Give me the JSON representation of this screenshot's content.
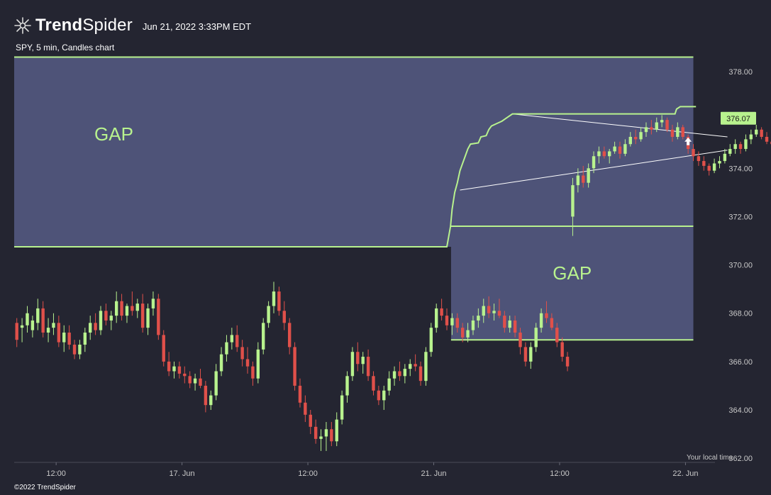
{
  "header": {
    "brand_bold": "Trend",
    "brand_light": "Spider",
    "date": "Jun 21, 2022 3:33PM EDT",
    "logo_icon": "trendspider-logo-icon"
  },
  "subtitle": "SPY, 5 min, Candles chart",
  "footer": {
    "copyright": "©2022 TrendSpider",
    "local_time": "Your local time"
  },
  "colors": {
    "background": "#242531",
    "up": "#b8f28e",
    "down": "#e0504a",
    "gap_fill": "#4e5378",
    "gap_line": "#b8f28e",
    "trendline": "#ffffff"
  },
  "chart_data": {
    "type": "candlestick",
    "ticker": "SPY",
    "interval": "5 min",
    "y_ticks": [
      "378.00",
      "376.00",
      "374.00",
      "372.00",
      "370.00",
      "368.00",
      "366.00",
      "364.00",
      "362.00"
    ],
    "ylim": [
      361.5,
      379.0
    ],
    "x_ticks": [
      "12:00",
      "17. Jun",
      "12:00",
      "21. Jun",
      "12:00",
      "22. Jun"
    ],
    "x_tick_positions": [
      8,
      32,
      56,
      80,
      104,
      128
    ],
    "x_range": [
      0,
      132
    ],
    "last_price": "376.07",
    "gaps": [
      {
        "label": "GAP",
        "x0": 0,
        "x1": 129.5,
        "y_low": 370.75,
        "y_high": 378.6,
        "boundary_x": 83
      },
      {
        "label": "GAP",
        "x0": 83.3,
        "x1": 129.5,
        "y_low": 366.9,
        "y_high": 371.6
      }
    ],
    "trendlines": [
      {
        "x0": 95,
        "y0": 376.25,
        "x1": 136,
        "y1": 375.3
      },
      {
        "x0": 85,
        "y0": 373.1,
        "x1": 136,
        "y1": 374.75
      }
    ],
    "step_line": [
      [
        0,
        370.75
      ],
      [
        82.5,
        370.75
      ],
      [
        83.2,
        371.6
      ],
      [
        83.5,
        372.3
      ],
      [
        84,
        373.0
      ],
      [
        84.5,
        373.4
      ],
      [
        85,
        373.9
      ],
      [
        85.5,
        374.2
      ],
      [
        86,
        374.5
      ],
      [
        86.5,
        374.8
      ],
      [
        87,
        375.0
      ],
      [
        88.5,
        375.05
      ],
      [
        89,
        375.3
      ],
      [
        90,
        375.35
      ],
      [
        90.5,
        375.6
      ],
      [
        91,
        375.75
      ],
      [
        92,
        375.85
      ],
      [
        93,
        375.95
      ],
      [
        94,
        376.1
      ],
      [
        95,
        376.25
      ],
      [
        126,
        376.25
      ],
      [
        126.3,
        376.45
      ],
      [
        127,
        376.55
      ],
      [
        130,
        376.55
      ]
    ],
    "markers": [
      {
        "type": "arrow-up",
        "x": 128.5,
        "y": 375.1
      }
    ],
    "candles": [
      [
        367.6,
        367.8,
        366.6,
        366.9
      ],
      [
        367.4,
        367.8,
        366.8,
        367.5
      ],
      [
        367.5,
        368.3,
        367.2,
        368.0
      ],
      [
        367.3,
        367.9,
        367.0,
        367.7
      ],
      [
        367.6,
        368.6,
        367.3,
        368.2
      ],
      [
        368.2,
        368.5,
        367.0,
        367.2
      ],
      [
        367.2,
        367.8,
        366.8,
        367.4
      ],
      [
        367.4,
        368.0,
        367.1,
        367.6
      ],
      [
        367.6,
        367.9,
        366.6,
        366.8
      ],
      [
        366.8,
        367.5,
        366.4,
        367.2
      ],
      [
        367.2,
        367.5,
        366.5,
        366.7
      ],
      [
        366.7,
        366.9,
        366.1,
        366.3
      ],
      [
        366.3,
        366.9,
        366.1,
        366.7
      ],
      [
        366.7,
        367.4,
        366.4,
        367.2
      ],
      [
        367.2,
        367.9,
        366.9,
        367.6
      ],
      [
        367.6,
        368.0,
        367.1,
        367.3
      ],
      [
        367.3,
        368.3,
        367.1,
        368.1
      ],
      [
        368.1,
        368.4,
        367.5,
        367.7
      ],
      [
        367.7,
        368.1,
        367.3,
        367.9
      ],
      [
        367.9,
        368.9,
        367.6,
        368.5
      ],
      [
        368.5,
        368.8,
        367.7,
        367.9
      ],
      [
        367.9,
        368.4,
        367.6,
        368.3
      ],
      [
        368.3,
        368.9,
        367.9,
        368.1
      ],
      [
        368.1,
        368.6,
        367.8,
        368.4
      ],
      [
        368.4,
        368.8,
        367.2,
        367.4
      ],
      [
        367.4,
        368.4,
        367.1,
        368.2
      ],
      [
        368.2,
        368.9,
        367.9,
        368.6
      ],
      [
        368.6,
        368.8,
        366.9,
        367.1
      ],
      [
        367.1,
        367.3,
        365.8,
        366.0
      ],
      [
        366.0,
        366.4,
        365.4,
        365.6
      ],
      [
        365.6,
        366.0,
        365.3,
        365.8
      ],
      [
        365.8,
        366.0,
        365.3,
        365.5
      ],
      [
        365.5,
        365.8,
        365.1,
        365.4
      ],
      [
        365.4,
        365.6,
        364.9,
        365.1
      ],
      [
        365.1,
        365.5,
        364.8,
        365.3
      ],
      [
        365.3,
        365.7,
        364.9,
        365.0
      ],
      [
        365.0,
        365.2,
        363.9,
        364.2
      ],
      [
        364.2,
        364.8,
        364.0,
        364.6
      ],
      [
        364.6,
        365.9,
        364.4,
        365.6
      ],
      [
        365.6,
        366.6,
        365.4,
        366.3
      ],
      [
        366.3,
        367.1,
        366.0,
        366.8
      ],
      [
        366.8,
        367.4,
        366.5,
        367.1
      ],
      [
        367.1,
        367.5,
        366.4,
        366.6
      ],
      [
        366.6,
        366.9,
        365.8,
        366.1
      ],
      [
        366.1,
        366.6,
        365.5,
        365.8
      ],
      [
        365.8,
        366.0,
        365.0,
        365.3
      ],
      [
        365.3,
        366.8,
        365.1,
        366.5
      ],
      [
        366.5,
        367.8,
        366.3,
        367.6
      ],
      [
        367.6,
        368.5,
        367.4,
        368.3
      ],
      [
        368.3,
        369.3,
        368.0,
        368.9
      ],
      [
        368.9,
        369.1,
        367.9,
        368.1
      ],
      [
        368.1,
        368.5,
        367.3,
        367.6
      ],
      [
        367.6,
        367.8,
        366.3,
        366.6
      ],
      [
        366.6,
        366.8,
        364.8,
        365.0
      ],
      [
        365.0,
        365.3,
        364.1,
        364.3
      ],
      [
        364.3,
        364.6,
        363.5,
        363.8
      ],
      [
        363.8,
        364.0,
        363.0,
        363.3
      ],
      [
        363.3,
        363.6,
        362.6,
        362.8
      ],
      [
        362.8,
        363.2,
        362.3,
        362.9
      ],
      [
        362.9,
        363.5,
        362.3,
        363.2
      ],
      [
        363.2,
        363.5,
        362.5,
        362.7
      ],
      [
        362.7,
        363.9,
        362.5,
        363.6
      ],
      [
        363.6,
        364.8,
        363.4,
        364.6
      ],
      [
        364.6,
        365.6,
        364.3,
        365.4
      ],
      [
        365.4,
        366.6,
        365.2,
        366.4
      ],
      [
        366.4,
        366.8,
        365.6,
        365.9
      ],
      [
        365.9,
        366.4,
        365.5,
        366.2
      ],
      [
        366.2,
        366.5,
        365.2,
        365.4
      ],
      [
        365.4,
        365.6,
        364.6,
        364.8
      ],
      [
        364.8,
        365.0,
        364.2,
        364.4
      ],
      [
        364.4,
        365.0,
        364.0,
        364.8
      ],
      [
        364.8,
        365.6,
        364.6,
        365.3
      ],
      [
        365.3,
        365.8,
        365.0,
        365.6
      ],
      [
        365.6,
        366.0,
        365.2,
        365.4
      ],
      [
        365.4,
        365.9,
        365.1,
        365.7
      ],
      [
        365.7,
        366.1,
        365.4,
        365.9
      ],
      [
        365.9,
        366.3,
        365.6,
        365.8
      ],
      [
        365.8,
        366.0,
        365.0,
        365.2
      ],
      [
        365.2,
        366.6,
        365.0,
        366.4
      ],
      [
        366.4,
        367.6,
        366.2,
        367.4
      ],
      [
        367.4,
        368.4,
        367.2,
        368.2
      ],
      [
        368.2,
        368.6,
        367.7,
        367.9
      ],
      [
        367.9,
        368.2,
        367.3,
        367.5
      ],
      [
        367.5,
        368.0,
        367.1,
        367.8
      ],
      [
        367.8,
        368.0,
        367.2,
        367.4
      ],
      [
        367.4,
        367.6,
        366.8,
        367.0
      ],
      [
        367.0,
        367.6,
        366.8,
        367.3
      ],
      [
        367.3,
        367.9,
        367.1,
        367.7
      ],
      [
        367.7,
        368.2,
        367.4,
        367.9
      ],
      [
        367.9,
        368.6,
        367.6,
        368.3
      ],
      [
        368.3,
        368.7,
        367.8,
        368.0
      ],
      [
        368.0,
        368.4,
        367.7,
        368.1
      ],
      [
        368.1,
        368.6,
        367.8,
        367.9
      ],
      [
        367.9,
        368.1,
        367.2,
        367.4
      ],
      [
        367.4,
        367.9,
        367.2,
        367.7
      ],
      [
        367.7,
        367.9,
        367.0,
        367.2
      ],
      [
        367.2,
        367.4,
        366.3,
        366.6
      ],
      [
        366.6,
        366.8,
        365.8,
        366.0
      ],
      [
        366.0,
        366.8,
        365.7,
        366.6
      ],
      [
        366.6,
        367.6,
        366.4,
        367.4
      ],
      [
        367.4,
        368.2,
        367.2,
        368.0
      ],
      [
        368.0,
        368.5,
        367.6,
        367.8
      ],
      [
        367.8,
        368.0,
        367.3,
        367.4
      ],
      [
        367.4,
        367.6,
        366.6,
        366.8
      ],
      [
        366.8,
        367.0,
        366.0,
        366.2
      ],
      [
        366.2,
        366.4,
        365.6,
        365.8
      ],
      [
        372.0,
        373.6,
        371.2,
        373.3
      ],
      [
        373.3,
        374.0,
        373.0,
        373.7
      ],
      [
        373.7,
        374.1,
        373.2,
        373.4
      ],
      [
        373.4,
        374.2,
        373.2,
        374.0
      ],
      [
        374.0,
        374.7,
        373.8,
        374.5
      ],
      [
        374.5,
        374.9,
        374.2,
        374.7
      ],
      [
        374.7,
        374.9,
        374.4,
        374.5
      ],
      [
        374.5,
        374.8,
        374.2,
        374.7
      ],
      [
        374.7,
        375.1,
        374.6,
        374.9
      ],
      [
        374.9,
        375.1,
        374.4,
        374.6
      ],
      [
        374.6,
        375.2,
        374.5,
        375.0
      ],
      [
        375.0,
        375.5,
        374.9,
        375.3
      ],
      [
        375.3,
        375.6,
        375.0,
        375.2
      ],
      [
        375.2,
        375.7,
        375.1,
        375.5
      ],
      [
        375.5,
        375.9,
        375.3,
        375.7
      ],
      [
        375.7,
        376.0,
        375.4,
        375.6
      ],
      [
        375.6,
        376.1,
        375.5,
        375.9
      ],
      [
        375.9,
        376.2,
        375.7,
        376.0
      ],
      [
        376.0,
        376.1,
        375.5,
        375.6
      ],
      [
        375.6,
        375.8,
        375.1,
        375.3
      ],
      [
        375.3,
        375.9,
        375.2,
        375.7
      ],
      [
        375.7,
        375.8,
        375.2,
        375.3
      ],
      [
        375.3,
        375.4,
        374.6,
        374.8
      ],
      [
        374.8,
        375.0,
        374.3,
        374.5
      ],
      [
        374.5,
        374.7,
        374.1,
        374.3
      ],
      [
        374.3,
        374.5,
        373.9,
        374.1
      ],
      [
        374.1,
        374.2,
        373.7,
        373.9
      ],
      [
        373.9,
        374.4,
        373.8,
        374.2
      ],
      [
        374.2,
        374.5,
        374.0,
        374.3
      ],
      [
        374.3,
        374.8,
        374.2,
        374.6
      ],
      [
        374.6,
        375.0,
        374.5,
        374.8
      ],
      [
        374.8,
        375.2,
        374.6,
        375.0
      ],
      [
        375.0,
        375.1,
        374.6,
        374.8
      ],
      [
        374.8,
        375.4,
        374.7,
        375.2
      ],
      [
        375.2,
        375.6,
        375.0,
        375.4
      ],
      [
        375.4,
        375.8,
        375.3,
        375.6
      ],
      [
        375.6,
        375.7,
        375.2,
        375.3
      ],
      [
        375.3,
        375.5,
        375.0,
        375.1
      ],
      [
        375.1,
        375.3,
        374.8,
        375.0
      ],
      [
        375.0,
        375.1,
        374.5,
        374.7
      ],
      [
        374.7,
        374.8,
        374.3,
        374.5
      ],
      [
        374.5,
        374.9,
        374.4,
        374.8
      ],
      [
        374.8,
        375.2,
        374.7,
        375.0
      ],
      [
        375.0,
        375.1,
        374.7,
        374.9
      ],
      [
        374.9,
        375.3,
        374.8,
        375.1
      ],
      [
        375.1,
        375.3,
        374.6,
        374.7
      ],
      [
        374.7,
        375.4,
        374.6,
        375.2
      ],
      [
        375.2,
        375.9,
        375.1,
        375.8
      ],
      [
        375.8,
        376.3,
        375.7,
        376.1
      ],
      [
        376.1,
        376.5,
        375.9,
        376.3
      ],
      [
        376.3,
        376.5,
        376.0,
        376.1
      ],
      [
        376.1,
        376.4,
        375.8,
        375.9
      ],
      [
        375.9,
        376.2,
        375.6,
        376.0
      ],
      [
        376.0,
        376.2,
        375.7,
        375.8
      ]
    ]
  }
}
